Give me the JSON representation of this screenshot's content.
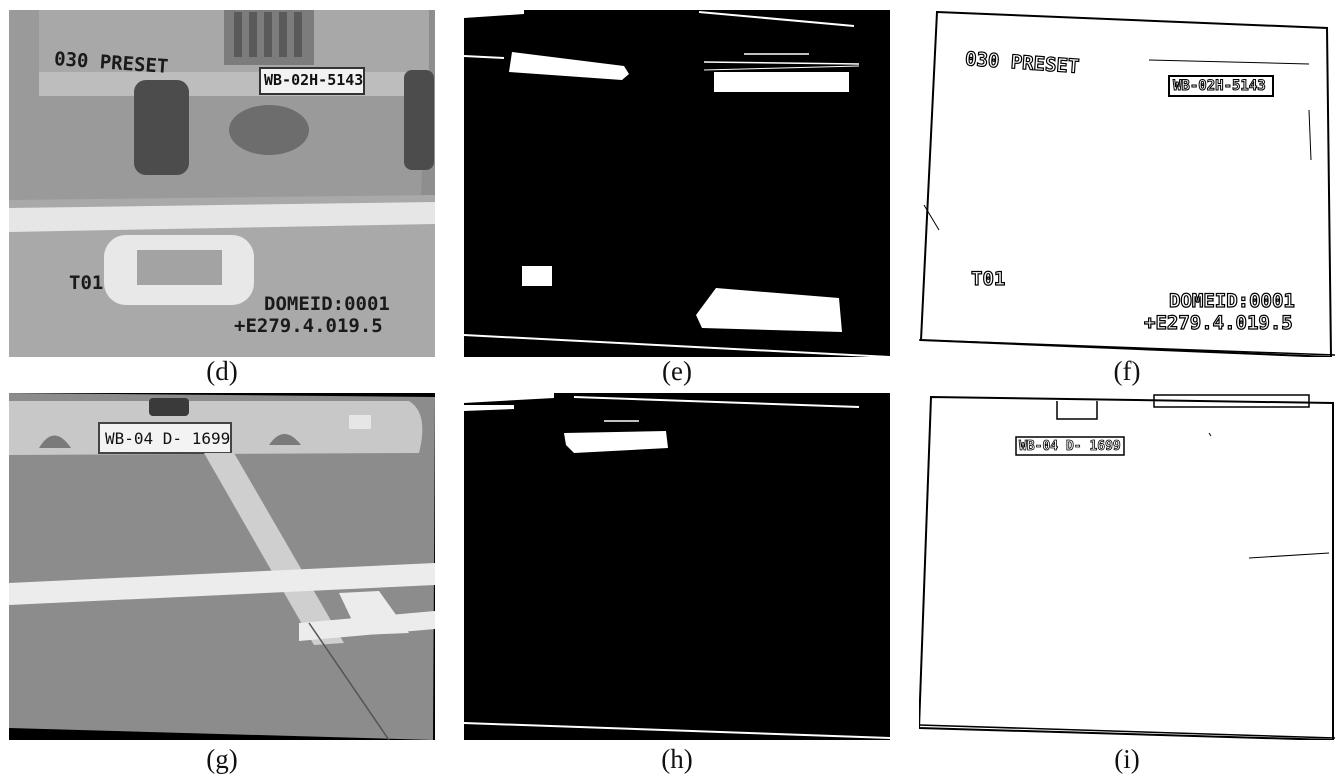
{
  "figure": {
    "panels": [
      {
        "caption": "(d)",
        "kind": "grayscale-photo",
        "overlay_texts": [
          "030 PRESET",
          "WB-02H-5143",
          "T01",
          "DOMEID:0001",
          "+E279.4.019.5"
        ]
      },
      {
        "caption": "(e)",
        "kind": "binary-mask"
      },
      {
        "caption": "(f)",
        "kind": "edge-map",
        "overlay_texts": [
          "030 PRESET",
          "WB-02H-5143",
          "T01",
          "DOMEID:0001",
          "+E279.4.019.5"
        ]
      },
      {
        "caption": "(g)",
        "kind": "grayscale-photo",
        "overlay_texts": [
          "WB-04 D- 1699"
        ]
      },
      {
        "caption": "(h)",
        "kind": "binary-mask"
      },
      {
        "caption": "(i)",
        "kind": "edge-map",
        "overlay_texts": [
          "WB-04 D- 1699"
        ]
      }
    ]
  }
}
